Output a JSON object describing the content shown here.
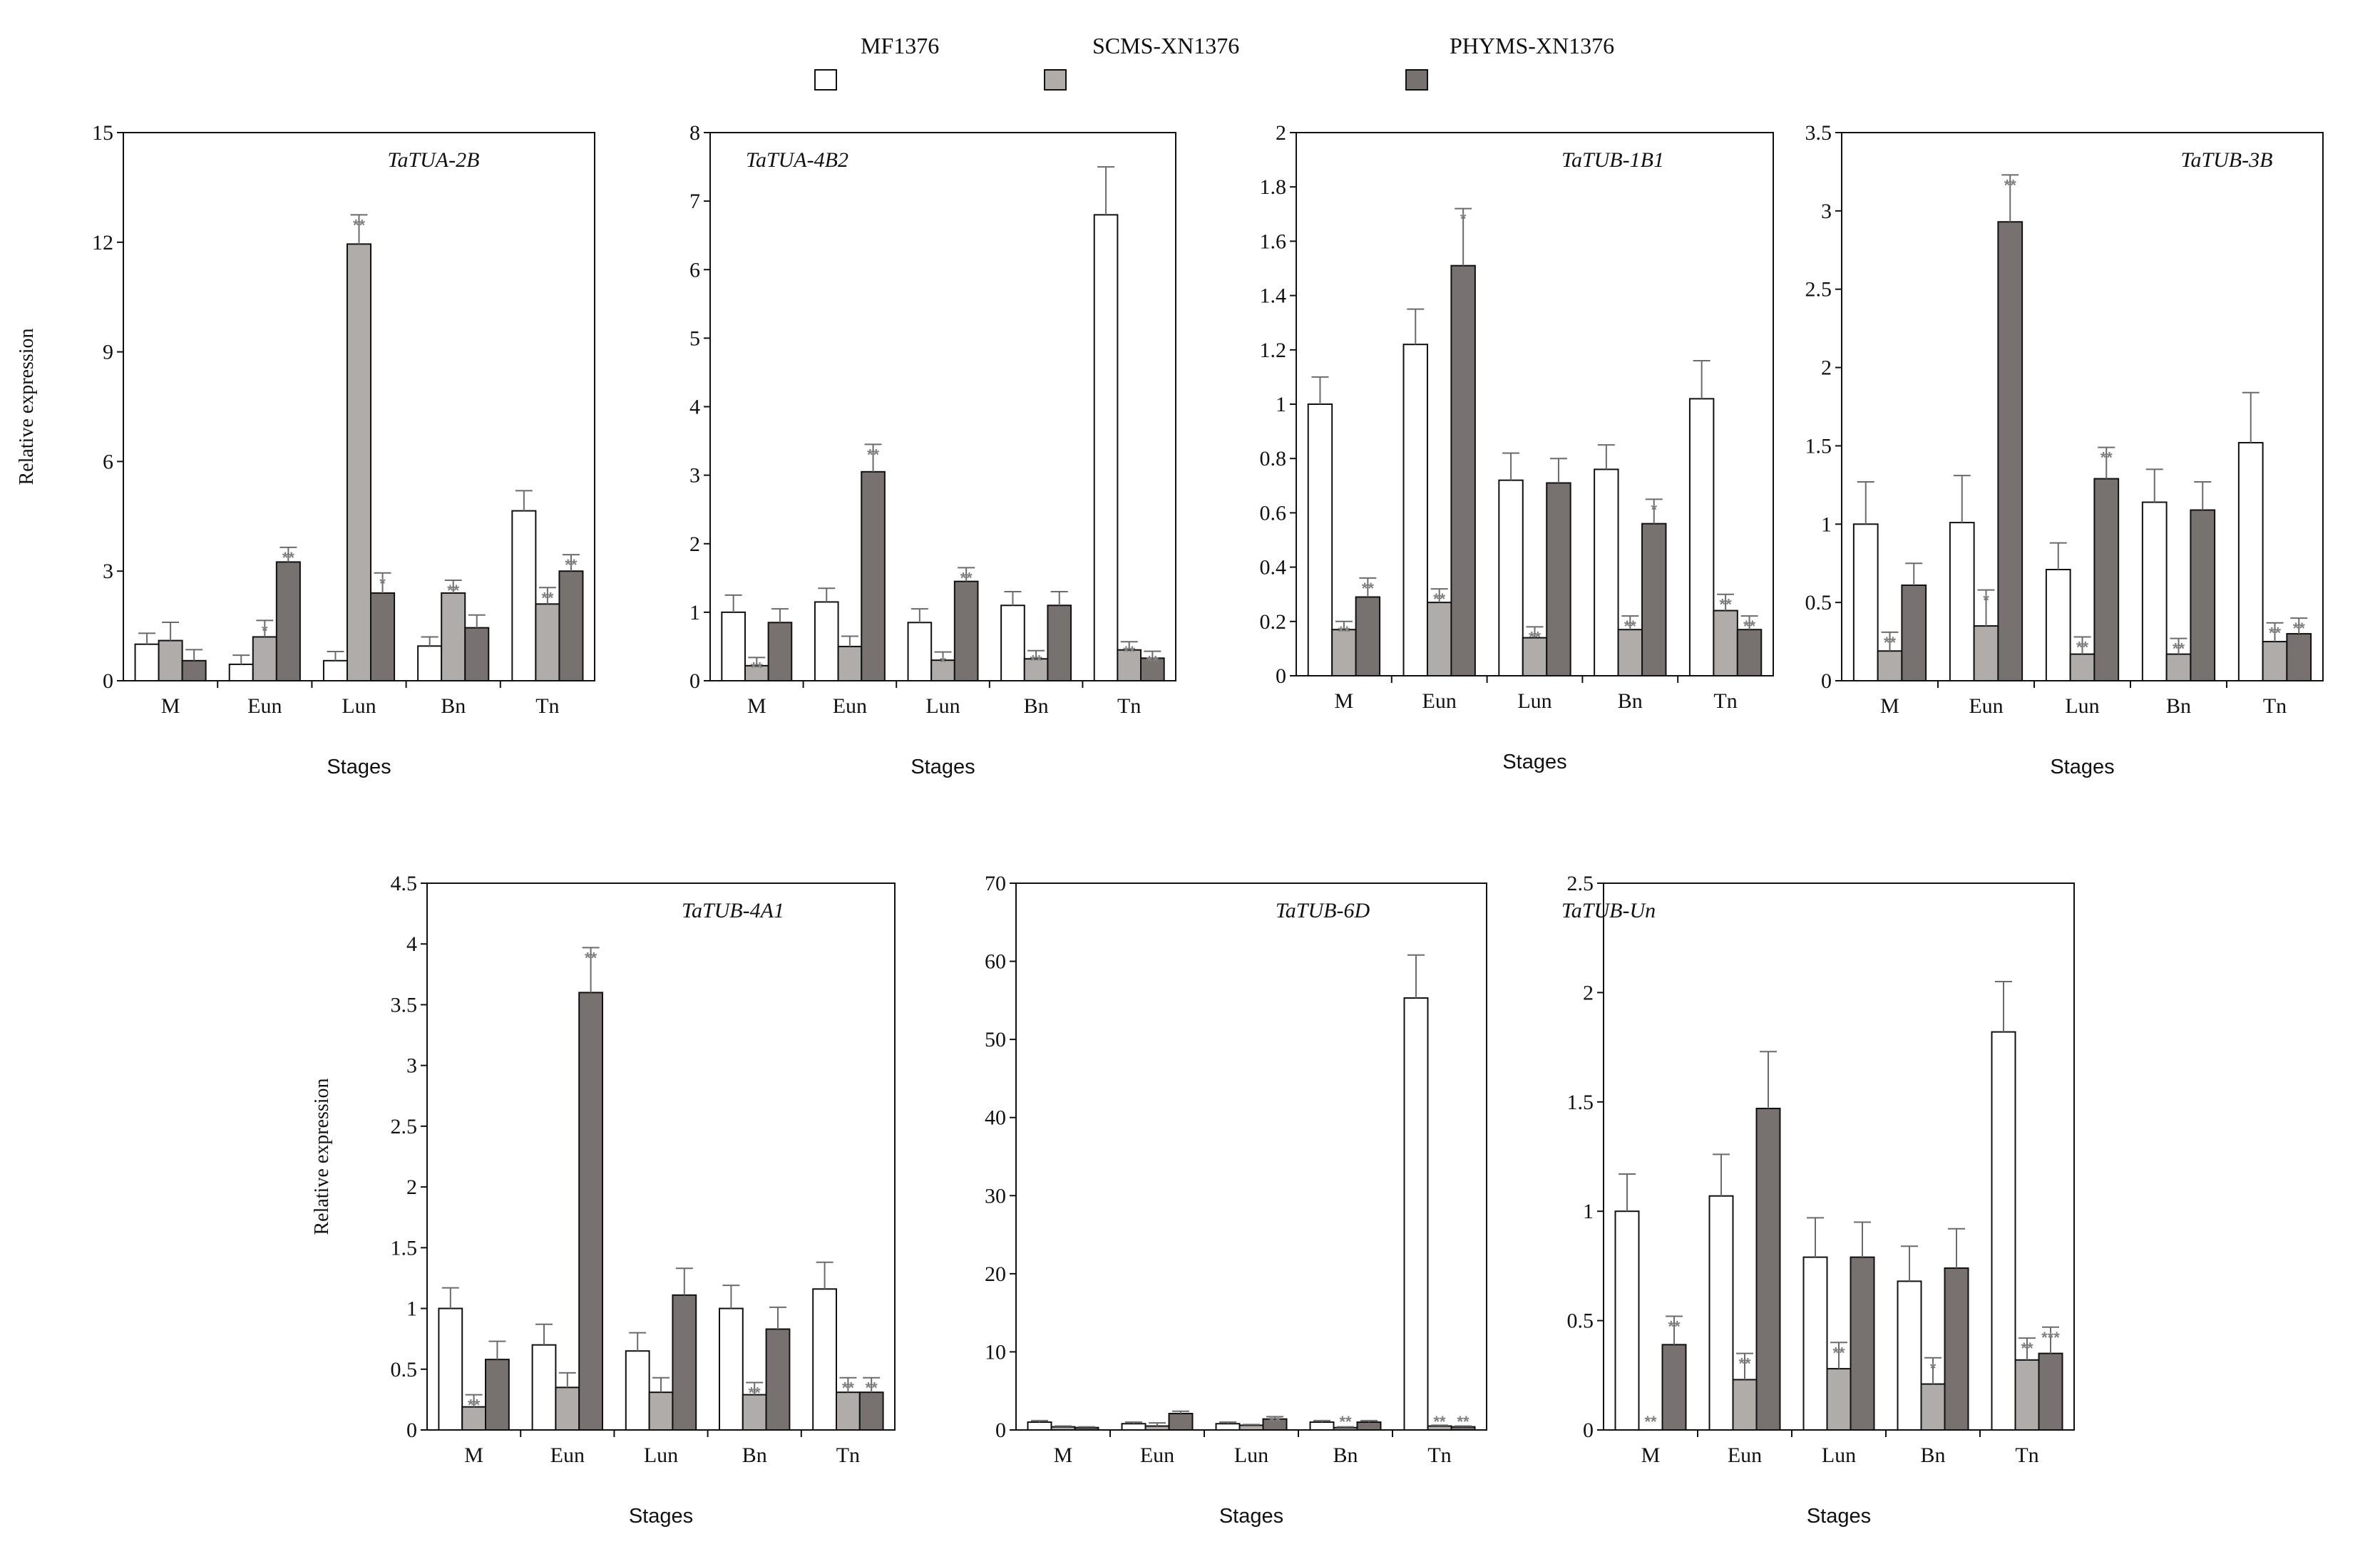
{
  "colors": {
    "MF1376": "#ffffff",
    "SCMS-XN1376": "#b0acaa",
    "PHYMS-XN1376": "#77716f",
    "stroke": "#111111",
    "sig": "#808080"
  },
  "legend": [
    "MF1376",
    "SCMS-XN1376",
    "PHYMS-XN1376"
  ],
  "chart_data": [
    {
      "type": "bar",
      "title": "TaTUA-2B",
      "xlabel": "Stages",
      "ylabel": "Relative expression",
      "ylim": [
        0,
        15
      ],
      "yticks": [
        0,
        3,
        6,
        9,
        12,
        15
      ],
      "categories": [
        "M",
        "Eun",
        "Lun",
        "Bn",
        "Tn"
      ],
      "series": [
        {
          "name": "MF1376",
          "values": [
            1.0,
            0.45,
            0.55,
            0.95,
            4.65
          ],
          "errors": [
            0.3,
            0.25,
            0.25,
            0.25,
            0.55
          ],
          "sig": [
            "",
            "",
            "",
            "",
            ""
          ]
        },
        {
          "name": "SCMS-XN1376",
          "values": [
            1.1,
            1.2,
            11.95,
            2.4,
            2.1
          ],
          "errors": [
            0.5,
            0.45,
            0.8,
            0.35,
            0.45
          ],
          "sig": [
            "",
            "*",
            "**",
            "**",
            "**"
          ]
        },
        {
          "name": "PHYMS-XN1376",
          "values": [
            0.55,
            3.25,
            2.4,
            1.45,
            3.0
          ],
          "errors": [
            0.3,
            0.4,
            0.55,
            0.35,
            0.45
          ],
          "sig": [
            "",
            "**",
            "*",
            "",
            "**"
          ]
        }
      ]
    },
    {
      "type": "bar",
      "title": "TaTUA-4B2",
      "xlabel": "Stages",
      "ylabel": "",
      "ylim": [
        0,
        8
      ],
      "yticks": [
        0,
        1,
        2,
        3,
        4,
        5,
        6,
        7,
        8
      ],
      "categories": [
        "M",
        "Eun",
        "Lun",
        "Bn",
        "Tn"
      ],
      "series": [
        {
          "name": "MF1376",
          "values": [
            1.0,
            1.15,
            0.85,
            1.1,
            6.8
          ],
          "errors": [
            0.25,
            0.2,
            0.2,
            0.2,
            0.7
          ],
          "sig": [
            "",
            "",
            "",
            "",
            ""
          ]
        },
        {
          "name": "SCMS-XN1376",
          "values": [
            0.22,
            0.5,
            0.3,
            0.32,
            0.45
          ],
          "errors": [
            0.12,
            0.15,
            0.12,
            0.12,
            0.12
          ],
          "sig": [
            "**",
            "",
            "*",
            "**",
            "**"
          ]
        },
        {
          "name": "PHYMS-XN1376",
          "values": [
            0.85,
            3.05,
            1.45,
            1.1,
            0.33
          ],
          "errors": [
            0.2,
            0.4,
            0.2,
            0.2,
            0.1
          ],
          "sig": [
            "",
            "**",
            "**",
            "",
            "**"
          ]
        }
      ]
    },
    {
      "type": "bar",
      "title": "TaTUB-1B1",
      "xlabel": "Stages",
      "ylabel": "",
      "ylim": [
        0,
        2
      ],
      "yticks": [
        0,
        0.2,
        0.4,
        0.6,
        0.8,
        1,
        1.2,
        1.4,
        1.6,
        1.8,
        2
      ],
      "categories": [
        "M",
        "Eun",
        "Lun",
        "Bn",
        "Tn"
      ],
      "series": [
        {
          "name": "MF1376",
          "values": [
            1.0,
            1.22,
            0.72,
            0.76,
            1.02
          ],
          "errors": [
            0.1,
            0.13,
            0.1,
            0.09,
            0.14
          ],
          "sig": [
            "",
            "",
            "",
            "",
            ""
          ]
        },
        {
          "name": "SCMS-XN1376",
          "values": [
            0.17,
            0.27,
            0.14,
            0.17,
            0.24
          ],
          "errors": [
            0.03,
            0.05,
            0.04,
            0.05,
            0.06
          ],
          "sig": [
            "**",
            "**",
            "**",
            "**",
            "**"
          ]
        },
        {
          "name": "PHYMS-XN1376",
          "values": [
            0.29,
            1.51,
            0.71,
            0.56,
            0.17
          ],
          "errors": [
            0.07,
            0.21,
            0.09,
            0.09,
            0.05
          ],
          "sig": [
            "**",
            "*",
            "",
            "*",
            "**"
          ]
        }
      ]
    },
    {
      "type": "bar",
      "title": "TaTUB-3B",
      "xlabel": "Stages",
      "ylabel": "",
      "ylim": [
        0,
        3.5
      ],
      "yticks": [
        0,
        0.5,
        1,
        1.5,
        2,
        2.5,
        3,
        3.5
      ],
      "categories": [
        "M",
        "Eun",
        "Lun",
        "Bn",
        "Tn"
      ],
      "series": [
        {
          "name": "MF1376",
          "values": [
            1.0,
            1.01,
            0.71,
            1.14,
            1.52
          ],
          "errors": [
            0.27,
            0.3,
            0.17,
            0.21,
            0.32
          ],
          "sig": [
            "",
            "",
            "",
            "",
            ""
          ]
        },
        {
          "name": "SCMS-XN1376",
          "values": [
            0.19,
            0.35,
            0.17,
            0.17,
            0.25
          ],
          "errors": [
            0.12,
            0.23,
            0.11,
            0.1,
            0.12
          ],
          "sig": [
            "**",
            "*",
            "**",
            "**",
            "**"
          ]
        },
        {
          "name": "PHYMS-XN1376",
          "values": [
            0.61,
            2.93,
            1.29,
            1.09,
            0.3
          ],
          "errors": [
            0.14,
            0.3,
            0.2,
            0.18,
            0.1
          ],
          "sig": [
            "",
            "**",
            "**",
            "",
            "**"
          ]
        }
      ]
    },
    {
      "type": "bar",
      "title": "TaTUB-4A1",
      "xlabel": "Stages",
      "ylabel": "Relative expression",
      "ylim": [
        0,
        4.5
      ],
      "yticks": [
        0,
        0.5,
        1,
        1.5,
        2,
        2.5,
        3,
        3.5,
        4,
        4.5
      ],
      "categories": [
        "M",
        "Eun",
        "Lun",
        "Bn",
        "Tn"
      ],
      "series": [
        {
          "name": "MF1376",
          "values": [
            1.0,
            0.7,
            0.65,
            1.0,
            1.16
          ],
          "errors": [
            0.17,
            0.17,
            0.15,
            0.19,
            0.22
          ],
          "sig": [
            "",
            "",
            "",
            "",
            ""
          ]
        },
        {
          "name": "SCMS-XN1376",
          "values": [
            0.19,
            0.35,
            0.31,
            0.29,
            0.31
          ],
          "errors": [
            0.1,
            0.12,
            0.12,
            0.1,
            0.12
          ],
          "sig": [
            "**",
            "",
            "",
            "**",
            "**"
          ]
        },
        {
          "name": "PHYMS-XN1376",
          "values": [
            0.58,
            3.6,
            1.11,
            0.83,
            0.31
          ],
          "errors": [
            0.15,
            0.37,
            0.22,
            0.18,
            0.12
          ],
          "sig": [
            "",
            "**",
            "",
            "",
            "**"
          ]
        }
      ]
    },
    {
      "type": "bar",
      "title": "TaTUB-6D",
      "xlabel": "Stages",
      "ylabel": "",
      "ylim": [
        0,
        70
      ],
      "yticks": [
        0,
        10,
        20,
        30,
        40,
        50,
        60,
        70
      ],
      "categories": [
        "M",
        "Eun",
        "Lun",
        "Bn",
        "Tn"
      ],
      "series": [
        {
          "name": "MF1376",
          "values": [
            1.0,
            0.8,
            0.8,
            1.0,
            55.3
          ],
          "errors": [
            0.2,
            0.2,
            0.2,
            0.2,
            5.5
          ],
          "sig": [
            "",
            "",
            "",
            "",
            ""
          ]
        },
        {
          "name": "SCMS-XN1376",
          "values": [
            0.4,
            0.5,
            0.6,
            0.3,
            0.5
          ],
          "errors": [
            0.1,
            0.4,
            0.1,
            0.1,
            0.1
          ],
          "sig": [
            "",
            "",
            "",
            "**",
            "**"
          ]
        },
        {
          "name": "PHYMS-XN1376",
          "values": [
            0.3,
            2.1,
            1.4,
            1.0,
            0.4
          ],
          "errors": [
            0.1,
            0.3,
            0.3,
            0.2,
            0.1
          ],
          "sig": [
            "",
            "",
            "**",
            "",
            "**"
          ]
        }
      ]
    },
    {
      "type": "bar",
      "title": "TaTUB-Un",
      "xlabel": "Stages",
      "ylabel": "",
      "ylim": [
        0,
        2.5
      ],
      "yticks": [
        0,
        0.5,
        1,
        1.5,
        2,
        2.5
      ],
      "categories": [
        "M",
        "Eun",
        "Lun",
        "Bn",
        "Tn"
      ],
      "series": [
        {
          "name": "MF1376",
          "values": [
            1.0,
            1.07,
            0.79,
            0.68,
            1.82
          ],
          "errors": [
            0.17,
            0.19,
            0.18,
            0.16,
            0.23
          ],
          "sig": [
            "",
            "",
            "",
            "",
            ""
          ]
        },
        {
          "name": "SCMS-XN1376",
          "values": [
            0.0,
            0.23,
            0.28,
            0.21,
            0.32
          ],
          "errors": [
            0.0,
            0.12,
            0.12,
            0.12,
            0.1
          ],
          "sig": [
            "**",
            "**",
            "**",
            "*",
            "**"
          ]
        },
        {
          "name": "PHYMS-XN1376",
          "values": [
            0.39,
            1.47,
            0.79,
            0.74,
            0.35
          ],
          "errors": [
            0.13,
            0.26,
            0.16,
            0.18,
            0.12
          ],
          "sig": [
            "**",
            "",
            "",
            "",
            "***"
          ]
        }
      ]
    }
  ]
}
